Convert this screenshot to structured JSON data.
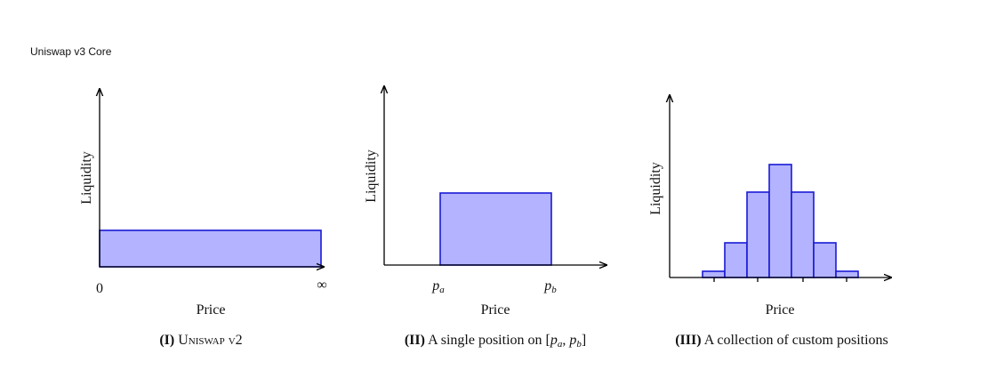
{
  "header": {
    "title": "Uniswap v3 Core"
  },
  "panels": [
    {
      "y_label": "Liquidity",
      "x_label": "Price",
      "ticks": [
        "0",
        "∞"
      ],
      "caption": {
        "label": "(I)",
        "text": "Uniswap v2"
      }
    },
    {
      "y_label": "Liquidity",
      "x_label": "Price",
      "ticks": [
        {
          "base": "p",
          "sub": "a"
        },
        {
          "base": "p",
          "sub": "b"
        }
      ],
      "caption": {
        "label": "(II)",
        "text": "A single position on",
        "math": [
          {
            "text": "["
          },
          {
            "base": "p",
            "sub": "a"
          },
          {
            "text": ", "
          },
          {
            "base": "p",
            "sub": "b"
          },
          {
            "text": "]"
          }
        ]
      }
    },
    {
      "y_label": "Liquidity",
      "x_label": "Price",
      "caption": {
        "label": "(III)",
        "text": "A collection of custom positions"
      }
    }
  ]
}
